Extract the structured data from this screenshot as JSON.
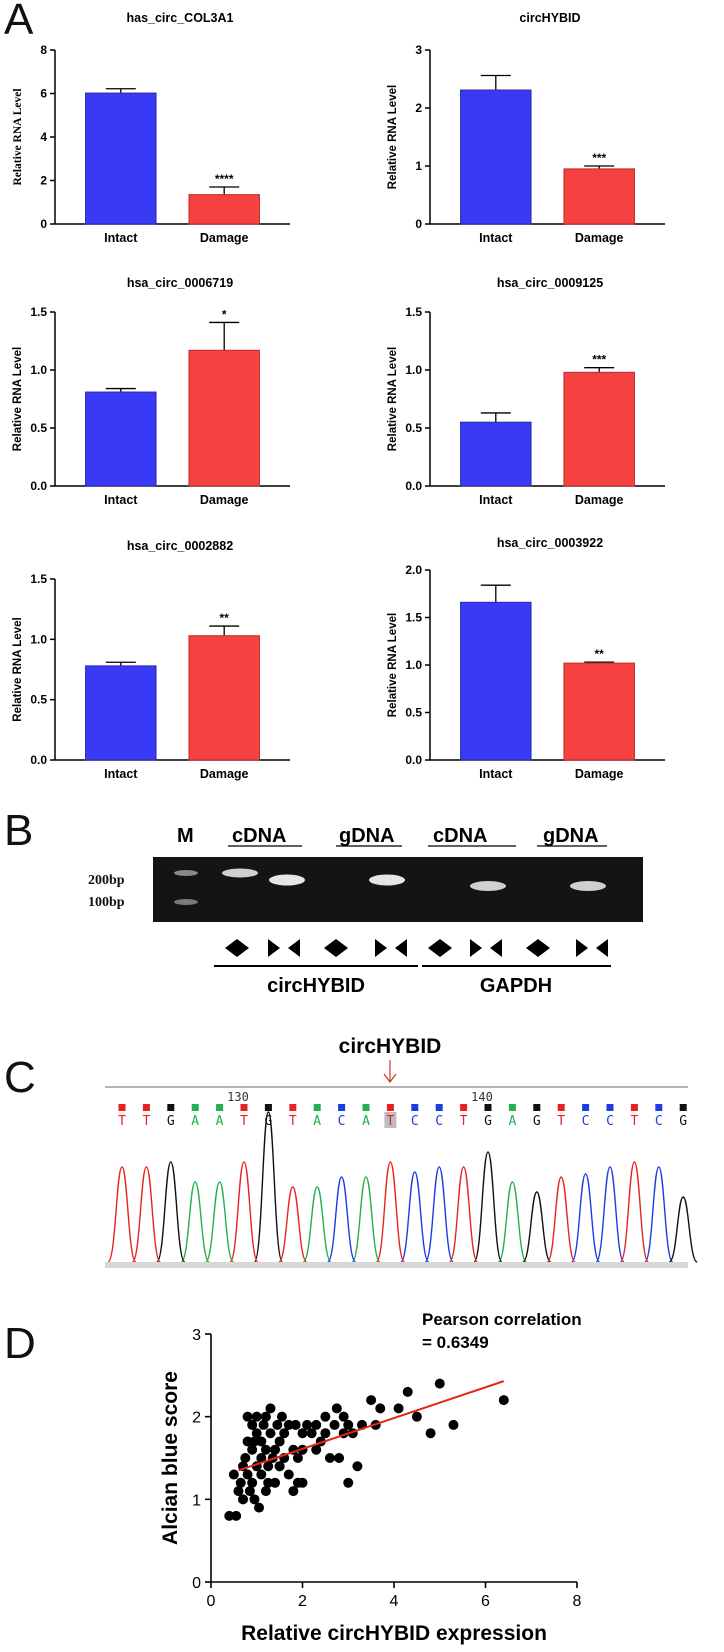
{
  "panels": {
    "a": "A",
    "b": "B",
    "c": "C",
    "d": "D"
  },
  "colors": {
    "intact": "#3a3af4",
    "damage": "#f64141",
    "fit_line": "#e8231f",
    "gel_band": "#e6e6e6"
  },
  "chart_data": [
    {
      "type": "bar",
      "title": "has_circ_COL3A1",
      "ylabel": "Relative RNA Level",
      "categories": [
        "Intact",
        "Damage"
      ],
      "values": [
        6.02,
        1.35
      ],
      "errors": [
        0.2,
        0.35
      ],
      "significance": [
        "",
        "****"
      ],
      "ylim": [
        0,
        8
      ],
      "yticks": [
        "0",
        "2",
        "4",
        "6",
        "8"
      ]
    },
    {
      "type": "bar",
      "title": "circHYBID",
      "ylabel": "Relative RNA Level",
      "categories": [
        "Intact",
        "Damage"
      ],
      "values": [
        2.31,
        0.95
      ],
      "errors": [
        0.25,
        0.05
      ],
      "significance": [
        "",
        "***"
      ],
      "ylim": [
        0,
        3
      ],
      "yticks": [
        "0",
        "1",
        "2",
        "3"
      ]
    },
    {
      "type": "bar",
      "title": "hsa_circ_0006719",
      "ylabel": "Relative RNA Level",
      "categories": [
        "Intact",
        "Damage"
      ],
      "values": [
        0.81,
        1.17
      ],
      "errors": [
        0.03,
        0.24
      ],
      "significance": [
        "",
        "*"
      ],
      "ylim": [
        0,
        1.5
      ],
      "yticks": [
        "0.0",
        "0.5",
        "1.0",
        "1.5"
      ]
    },
    {
      "type": "bar",
      "title": "hsa_circ_0009125",
      "ylabel": "Relative RNA Level",
      "categories": [
        "Intact",
        "Damage"
      ],
      "values": [
        0.55,
        0.98
      ],
      "errors": [
        0.08,
        0.04
      ],
      "significance": [
        "",
        "***"
      ],
      "ylim": [
        0,
        1.5
      ],
      "yticks": [
        "0.0",
        "0.5",
        "1.0",
        "1.5"
      ]
    },
    {
      "type": "bar",
      "title": "hsa_circ_0002882",
      "ylabel": "Relative RNA Level",
      "categories": [
        "Intact",
        "Damage"
      ],
      "values": [
        0.78,
        1.03
      ],
      "errors": [
        0.03,
        0.08
      ],
      "significance": [
        "",
        "**"
      ],
      "ylim": [
        0,
        1.5
      ],
      "yticks": [
        "0.0",
        "0.5",
        "1.0",
        "1.5"
      ]
    },
    {
      "type": "bar",
      "title": "hsa_circ_0003922",
      "ylabel": "Relative RNA Level",
      "categories": [
        "Intact",
        "Damage"
      ],
      "values": [
        1.66,
        1.02
      ],
      "errors": [
        0.18,
        0.01
      ],
      "significance": [
        "",
        "**"
      ],
      "ylim": [
        0,
        2.0
      ],
      "yticks": [
        "0.0",
        "0.5",
        "1.0",
        "1.5",
        "2.0"
      ]
    },
    {
      "type": "scatter",
      "annotation": [
        "Pearson correlation",
        "= 0.6349"
      ],
      "xlabel": "Relative circHYBID expression",
      "ylabel": "Alcian blue score",
      "xlim": [
        0,
        8
      ],
      "ylim": [
        0,
        3
      ],
      "xticks": [
        "0",
        "2",
        "4",
        "6",
        "8"
      ],
      "yticks": [
        "0",
        "1",
        "2",
        "3"
      ],
      "fit": {
        "x": [
          0.6,
          6.4
        ],
        "y": [
          1.35,
          2.43
        ]
      },
      "points": [
        [
          0.4,
          0.8
        ],
        [
          0.55,
          0.8
        ],
        [
          0.5,
          1.3
        ],
        [
          0.6,
          1.1
        ],
        [
          0.65,
          1.2
        ],
        [
          0.7,
          1.0
        ],
        [
          0.7,
          1.4
        ],
        [
          0.75,
          1.5
        ],
        [
          0.8,
          1.3
        ],
        [
          0.8,
          1.7
        ],
        [
          0.8,
          2.0
        ],
        [
          0.85,
          1.1
        ],
        [
          0.9,
          1.2
        ],
        [
          0.9,
          1.6
        ],
        [
          0.9,
          1.9
        ],
        [
          0.95,
          1.0
        ],
        [
          1.0,
          1.4
        ],
        [
          1.0,
          1.8
        ],
        [
          1.0,
          2.0
        ],
        [
          1.05,
          0.9
        ],
        [
          1.1,
          1.3
        ],
        [
          1.1,
          1.5
        ],
        [
          1.1,
          1.7
        ],
        [
          1.15,
          1.9
        ],
        [
          1.2,
          1.1
        ],
        [
          1.2,
          1.6
        ],
        [
          1.2,
          2.0
        ],
        [
          1.25,
          1.4
        ],
        [
          1.3,
          1.8
        ],
        [
          1.3,
          2.1
        ],
        [
          1.35,
          1.5
        ],
        [
          1.4,
          1.2
        ],
        [
          1.4,
          1.6
        ],
        [
          1.45,
          1.9
        ],
        [
          1.5,
          1.4
        ],
        [
          1.5,
          1.7
        ],
        [
          1.55,
          2.0
        ],
        [
          1.6,
          1.5
        ],
        [
          1.6,
          1.8
        ],
        [
          1.7,
          1.3
        ],
        [
          1.7,
          1.9
        ],
        [
          1.8,
          1.6
        ],
        [
          1.8,
          1.1
        ],
        [
          1.85,
          1.9
        ],
        [
          1.9,
          1.2
        ],
        [
          1.9,
          1.5
        ],
        [
          2.0,
          1.2
        ],
        [
          2.0,
          1.8
        ],
        [
          2.0,
          1.6
        ],
        [
          2.1,
          1.9
        ],
        [
          2.2,
          1.8
        ],
        [
          2.3,
          1.9
        ],
        [
          2.4,
          1.7
        ],
        [
          2.5,
          1.8
        ],
        [
          2.5,
          2.0
        ],
        [
          2.6,
          1.5
        ],
        [
          2.7,
          1.9
        ],
        [
          2.75,
          2.1
        ],
        [
          2.8,
          1.5
        ],
        [
          2.9,
          1.8
        ],
        [
          2.9,
          2.0
        ],
        [
          3.0,
          1.2
        ],
        [
          3.0,
          1.9
        ],
        [
          3.1,
          1.8
        ],
        [
          3.2,
          1.4
        ],
        [
          3.3,
          1.9
        ],
        [
          3.5,
          2.2
        ],
        [
          3.6,
          1.9
        ],
        [
          3.7,
          2.1
        ],
        [
          4.1,
          2.1
        ],
        [
          4.3,
          2.3
        ],
        [
          4.5,
          2.0
        ],
        [
          4.8,
          1.8
        ],
        [
          5.0,
          2.4
        ],
        [
          5.3,
          1.9
        ],
        [
          6.4,
          2.2
        ],
        [
          1.5,
          1.4
        ],
        [
          1.25,
          1.2
        ],
        [
          0.95,
          1.7
        ],
        [
          2.3,
          1.6
        ]
      ]
    }
  ],
  "gel": {
    "lane_labels": [
      "M",
      "cDNA",
      "gDNA",
      "cDNA",
      "gDNA"
    ],
    "markers": [
      "200bp",
      "100bp"
    ],
    "primer_groups": [
      "circHYBID",
      "GAPDH"
    ]
  },
  "sequence": {
    "title": "circHYBID",
    "positions": [
      "130",
      "140"
    ],
    "bases": [
      "T",
      "T",
      "G",
      "A",
      "A",
      "T",
      "G",
      "T",
      "A",
      "C",
      "A",
      "T",
      "C",
      "C",
      "T",
      "G",
      "A",
      "G",
      "T",
      "C",
      "C",
      "T",
      "C",
      "G"
    ],
    "base_colors": {
      "A": "#22b14c",
      "C": "#1e3ce6",
      "G": "#111111",
      "T": "#e8231f"
    }
  }
}
